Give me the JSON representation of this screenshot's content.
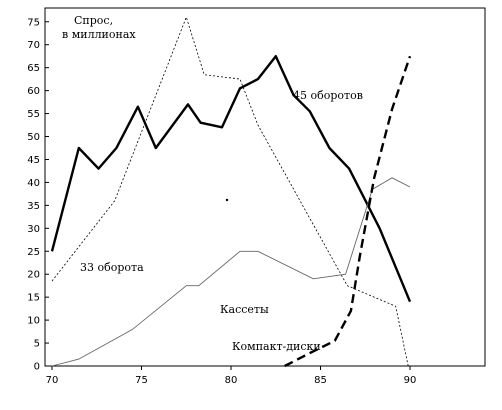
{
  "chart_data": {
    "type": "line",
    "ylabel_line1": "Спрос,",
    "ylabel_line2": "в миллионах",
    "xlim": [
      70,
      90
    ],
    "ylim": [
      0,
      78
    ],
    "x_ticks": [
      70,
      75,
      80,
      85,
      90
    ],
    "y_ticks": [
      0,
      5,
      10,
      15,
      20,
      25,
      30,
      35,
      40,
      45,
      50,
      55,
      60,
      65,
      70,
      75
    ],
    "grid": false,
    "series": [
      {
        "name": "45 оборотов",
        "style": "thick-solid",
        "x": [
          70,
          71.5,
          72.6,
          73.6,
          74.8,
          75.8,
          77.6,
          78.3,
          79.5,
          80.5,
          81.5,
          82.5,
          83.5,
          84.4,
          85.5,
          86.6,
          88.3,
          90
        ],
        "y": [
          25,
          47.5,
          43,
          47.5,
          56.5,
          47.5,
          57,
          53,
          52,
          60.5,
          62.5,
          67.5,
          59,
          55.5,
          47.5,
          43,
          30,
          14
        ]
      },
      {
        "name": "33 оборота",
        "style": "thin-dotted",
        "x": [
          70,
          73.5,
          77.5,
          78.5,
          80.5,
          81.5,
          86.5,
          89.2,
          89.9
        ],
        "y": [
          18.5,
          36,
          76,
          63.5,
          62.5,
          52.5,
          17.5,
          13,
          0
        ]
      },
      {
        "name": "Кассеты",
        "style": "thin-solid",
        "x": [
          70,
          71.5,
          74.5,
          77.5,
          78.2,
          80.5,
          81.5,
          84.6,
          86.4,
          87.9,
          89.0,
          90
        ],
        "y": [
          0,
          1.5,
          8,
          17.5,
          17.5,
          25,
          25,
          19,
          20,
          38.5,
          41,
          39
        ]
      },
      {
        "name": "Компакт-диски",
        "style": "thick-dashed",
        "x": [
          83,
          84.5,
          85.8,
          86.7,
          87.2,
          88,
          89,
          90
        ],
        "y": [
          0,
          3,
          5.5,
          12,
          24,
          41,
          56,
          67.5
        ]
      }
    ]
  }
}
